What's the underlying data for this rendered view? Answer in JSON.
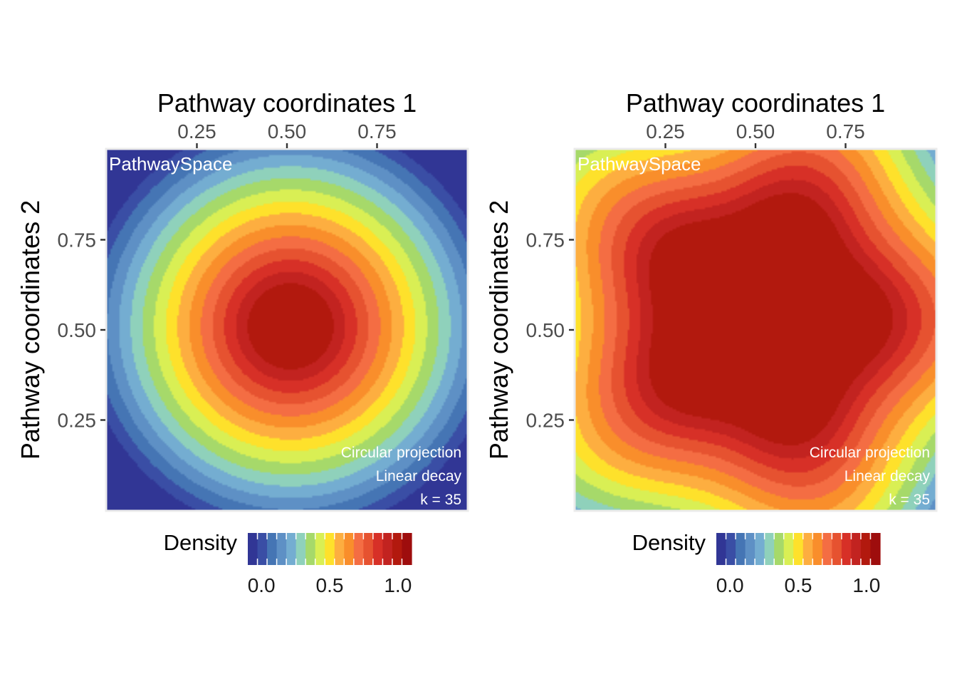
{
  "chart_data": [
    {
      "type": "heatmap",
      "xlabel": "Pathway coordinates 1",
      "ylabel": "Pathway coordinates 2",
      "x_ticks": [
        0.25,
        0.5,
        0.75
      ],
      "x_tick_labels": [
        "0.25",
        "0.50",
        "0.75"
      ],
      "y_ticks": [
        0.25,
        0.5,
        0.75
      ],
      "y_tick_labels": [
        "0.25",
        "0.50",
        "0.75"
      ],
      "xlim": [
        0,
        1
      ],
      "ylim": [
        0,
        1
      ],
      "x_axis_position": "top",
      "grid": false,
      "tag": "PathwaySpace",
      "annotations": [
        "Circular projection",
        "Linear decay",
        "k = 35"
      ],
      "legend": {
        "title": "Density",
        "position": "bottom",
        "ticks": [
          0,
          0.5,
          1
        ],
        "tick_labels": [
          "0.0",
          "0.5",
          "1.0"
        ],
        "range": [
          -0.1,
          1.1
        ]
      },
      "field": {
        "shape": "circle",
        "center": [
          0.51,
          0.51
        ],
        "peak": 1.0,
        "plateau_radius": 0.1,
        "falloff_radius": 0.56
      }
    },
    {
      "type": "heatmap",
      "xlabel": "Pathway coordinates 1",
      "ylabel": "Pathway coordinates 2",
      "x_ticks": [
        0.25,
        0.5,
        0.75
      ],
      "x_tick_labels": [
        "0.25",
        "0.50",
        "0.75"
      ],
      "y_ticks": [
        0.25,
        0.5,
        0.75
      ],
      "y_tick_labels": [
        "0.25",
        "0.50",
        "0.75"
      ],
      "xlim": [
        0,
        1
      ],
      "ylim": [
        0,
        1
      ],
      "x_axis_position": "top",
      "grid": false,
      "tag": "PathwaySpace",
      "annotations": [
        "Circular projection",
        "Linear decay",
        "k = 35"
      ],
      "legend": {
        "title": "Density",
        "position": "bottom",
        "ticks": [
          0,
          0.5,
          1
        ],
        "tick_labels": [
          "0.0",
          "0.5",
          "1.0"
        ],
        "range": [
          -0.1,
          1.1
        ]
      },
      "field": {
        "shape": "pentagon",
        "center": [
          0.52,
          0.53
        ],
        "peak": 1.0,
        "plateau_radius": 0.31,
        "falloff_radius": 0.82
      }
    }
  ],
  "colors": {
    "palette": [
      "#313695",
      "#3a4ea5",
      "#4575b4",
      "#5e90c5",
      "#74add1",
      "#8fd1bb",
      "#a6d96a",
      "#d9ef54",
      "#fee12b",
      "#fdae40",
      "#f98e2b",
      "#f46d43",
      "#e65230",
      "#d73027",
      "#c22320",
      "#b2190e",
      "#9e0d0d"
    ],
    "panel_border": "#ebebeb"
  }
}
